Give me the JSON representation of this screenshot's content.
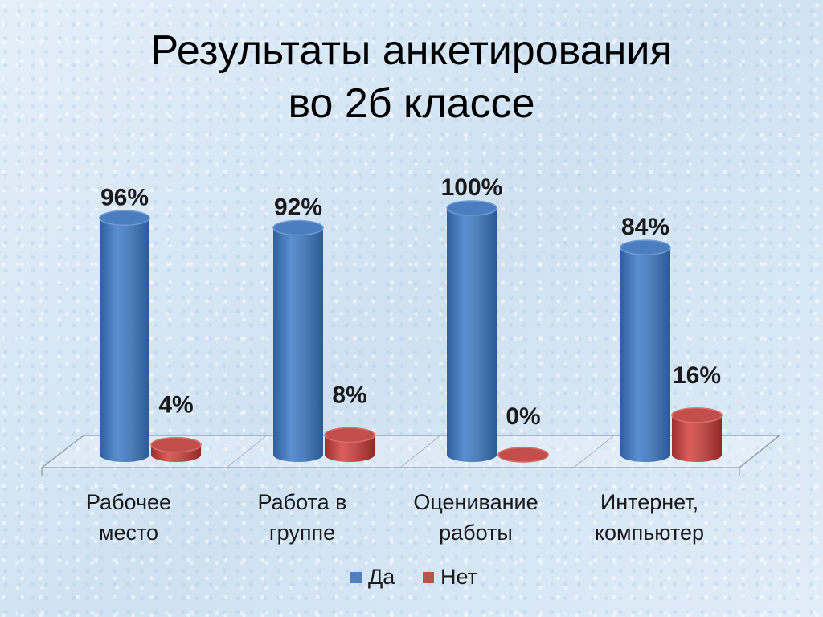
{
  "title": {
    "line1": "Результаты анкетирования",
    "line2": "во 2б классе"
  },
  "chart_data": {
    "type": "bar",
    "categories": [
      [
        "Рабочее",
        "место"
      ],
      [
        "Работа в",
        "группе"
      ],
      [
        "Оценивание",
        "работы"
      ],
      [
        "Интернет,",
        "компьютер"
      ]
    ],
    "series": [
      {
        "name": "Да",
        "values": [
          96,
          92,
          100,
          84
        ],
        "labels": [
          "96%",
          "92%",
          "100%",
          "84%"
        ]
      },
      {
        "name": "Нет",
        "values": [
          4,
          8,
          0,
          16
        ],
        "labels": [
          "4%",
          "8%",
          "0%",
          "16%"
        ]
      }
    ],
    "ylim": [
      0,
      100
    ],
    "legend": "bottom",
    "colors": {
      "Да": "#4f81bd",
      "Нет": "#c0504d"
    }
  }
}
